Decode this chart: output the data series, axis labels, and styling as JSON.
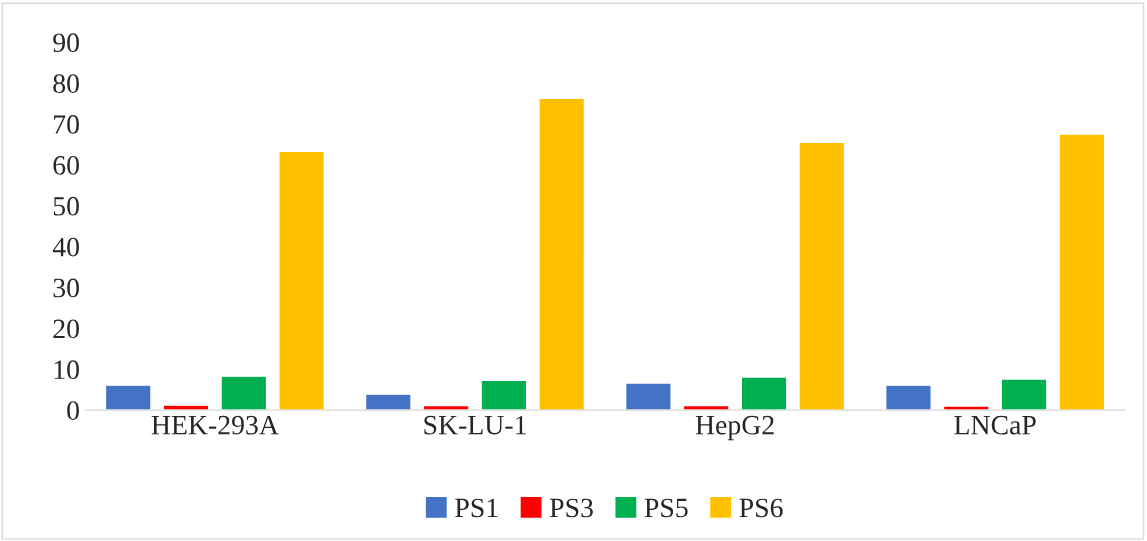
{
  "chart_data": {
    "type": "bar",
    "categories": [
      "HEK-293A",
      "SK-LU-1",
      "HepG2",
      "LNCaP"
    ],
    "series": [
      {
        "name": "PS1",
        "color": "#4472c4",
        "values": [
          6.1,
          3.9,
          6.6,
          6.1
        ]
      },
      {
        "name": "PS3",
        "color": "#ff0000",
        "values": [
          1.2,
          1.1,
          1.1,
          1.0
        ]
      },
      {
        "name": "PS5",
        "color": "#00b050",
        "values": [
          8.3,
          7.3,
          8.1,
          7.6
        ]
      },
      {
        "name": "PS6",
        "color": "#ffc000",
        "values": [
          63.3,
          76.3,
          65.5,
          67.5
        ]
      }
    ],
    "ylim": [
      0,
      90
    ],
    "yticks": [
      0,
      10,
      20,
      30,
      40,
      50,
      60,
      70,
      80,
      90
    ],
    "grid": false,
    "legend": "bottom"
  }
}
